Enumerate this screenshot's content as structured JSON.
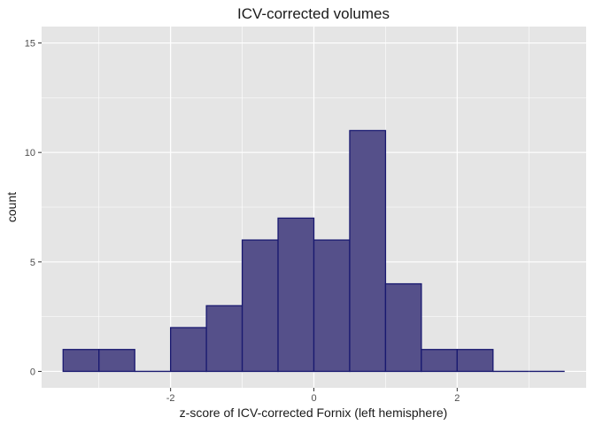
{
  "chart_data": {
    "type": "bar",
    "title": "ICV-corrected volumes",
    "xlabel": "z-score of ICV-corrected Fornix (left hemisphere)",
    "ylabel": "count",
    "bin_width": 0.5,
    "bins": [
      {
        "x0": -3.5,
        "x1": -3.0,
        "count": 1
      },
      {
        "x0": -3.0,
        "x1": -2.5,
        "count": 1
      },
      {
        "x0": -2.5,
        "x1": -2.0,
        "count": 0
      },
      {
        "x0": -2.0,
        "x1": -1.5,
        "count": 2
      },
      {
        "x0": -1.5,
        "x1": -1.0,
        "count": 3
      },
      {
        "x0": -1.0,
        "x1": -0.5,
        "count": 6
      },
      {
        "x0": -0.5,
        "x1": 0.0,
        "count": 7
      },
      {
        "x0": 0.0,
        "x1": 0.5,
        "count": 6
      },
      {
        "x0": 0.5,
        "x1": 1.0,
        "count": 11
      },
      {
        "x0": 1.0,
        "x1": 1.5,
        "count": 4
      },
      {
        "x0": 1.5,
        "x1": 2.0,
        "count": 1
      },
      {
        "x0": 2.0,
        "x1": 2.5,
        "count": 1
      },
      {
        "x0": 2.5,
        "x1": 3.0,
        "count": 0
      },
      {
        "x0": 3.0,
        "x1": 3.5,
        "count": 0
      }
    ],
    "xlim": [
      -3.8,
      3.8
    ],
    "ylim": [
      -0.75,
      15.75
    ],
    "x_ticks": [
      -2,
      0,
      2
    ],
    "x_tick_labels": [
      "-2",
      "0",
      "2"
    ],
    "y_ticks": [
      0,
      5,
      10,
      15
    ],
    "y_tick_labels": [
      "0",
      "5",
      "10",
      "15"
    ],
    "grid": true,
    "colors": {
      "panel_bg": "#e5e5e5",
      "grid": "#ffffff",
      "bar_fill": "#55508a",
      "bar_stroke": "#191970"
    }
  }
}
